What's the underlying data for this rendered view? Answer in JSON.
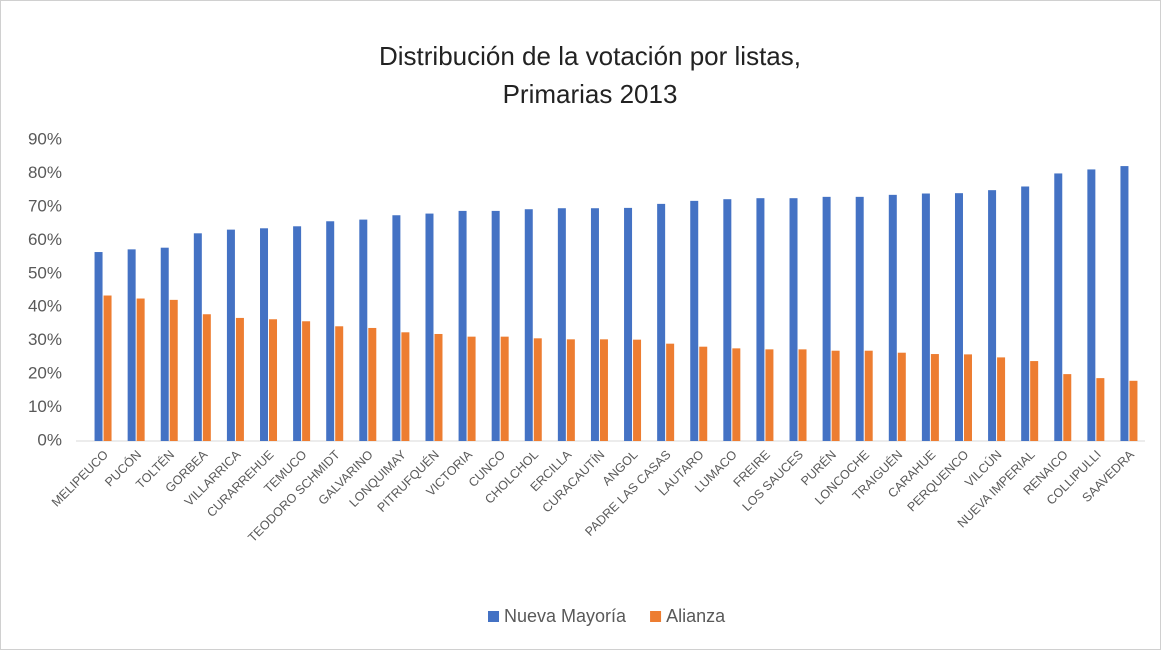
{
  "chart_data": {
    "type": "bar",
    "title": [
      "Distribución de la votación por listas,",
      "Primarias 2013"
    ],
    "categories": [
      "MELIPEUCO",
      "PUCÓN",
      "TOLTÉN",
      "GORBEA",
      "VILLARRICA",
      "CURARREHUE",
      "TEMUCO",
      "TEODORO SCHMIDT",
      "GALVARINO",
      "LONQUIMAY",
      "PITRUFQUÉN",
      "VICTORIA",
      "CUNCO",
      "CHOLCHOL",
      "ERCILLA",
      "CURACAUTÍN",
      "ANGOL",
      "PADRE LAS CASAS",
      "LAUTARO",
      "LUMACO",
      "FREIRE",
      "LOS SAUCES",
      "PURÉN",
      "LONCOCHE",
      "TRAIGUÉN",
      "CARAHUE",
      "PERQUENCO",
      "VILCÚN",
      "NUEVA IMPERIAL",
      "RENAICO",
      "COLLIPULLI",
      "SAAVEDRA"
    ],
    "series": [
      {
        "name": "Nueva Mayoría",
        "color": "#4472c4",
        "values": [
          56.5,
          57.3,
          57.8,
          62.1,
          63.2,
          63.6,
          64.2,
          65.7,
          66.2,
          67.5,
          68.0,
          68.8,
          68.8,
          69.3,
          69.6,
          69.6,
          69.7,
          70.9,
          71.8,
          72.3,
          72.6,
          72.6,
          73.0,
          73.0,
          73.6,
          74.0,
          74.1,
          75.0,
          76.1,
          80.0,
          81.2,
          82.2
        ]
      },
      {
        "name": "Alianza",
        "color": "#ed7d31",
        "values": [
          43.5,
          42.6,
          42.2,
          37.9,
          36.8,
          36.4,
          35.8,
          34.3,
          33.8,
          32.5,
          32.0,
          31.2,
          31.2,
          30.7,
          30.4,
          30.4,
          30.3,
          29.1,
          28.2,
          27.7,
          27.4,
          27.4,
          27.0,
          27.0,
          26.4,
          26.0,
          25.9,
          25.0,
          23.9,
          20.0,
          18.8,
          18.0
        ]
      }
    ],
    "ylim": [
      0,
      90
    ],
    "yticks": [
      {
        "value": 0,
        "label": "0%"
      },
      {
        "value": 10,
        "label": "10%"
      },
      {
        "value": 20,
        "label": "20%"
      },
      {
        "value": 30,
        "label": "30%"
      },
      {
        "value": 40,
        "label": "40%"
      },
      {
        "value": 50,
        "label": "50%"
      },
      {
        "value": 60,
        "label": "60%"
      },
      {
        "value": 70,
        "label": "70%"
      },
      {
        "value": 80,
        "label": "80%"
      },
      {
        "value": 90,
        "label": "90%"
      }
    ],
    "grid": false,
    "legend": "bottom"
  }
}
